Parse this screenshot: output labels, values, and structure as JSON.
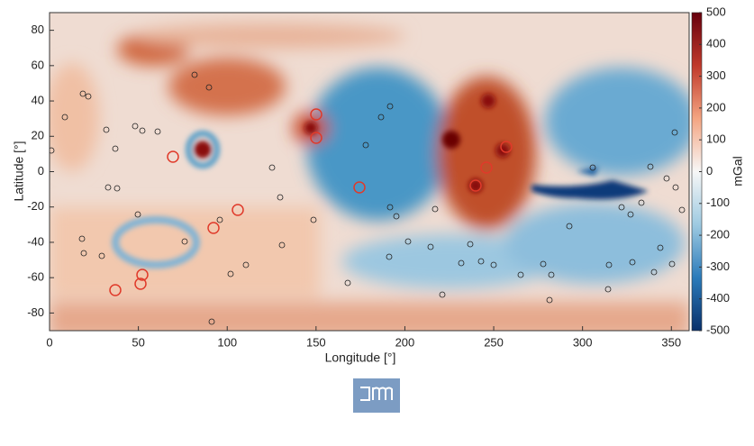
{
  "chart_data": {
    "type": "heatmap",
    "x_label": "Longitude [°]",
    "y_label": "Latitude [°]",
    "xlim": [
      0,
      360
    ],
    "ylim": [
      -90,
      90
    ],
    "xticks": [
      0,
      50,
      100,
      150,
      200,
      250,
      300,
      350
    ],
    "yticks": [
      -80,
      -60,
      -40,
      -20,
      0,
      20,
      40,
      60,
      80
    ],
    "colorbar": {
      "label": "mGal",
      "lim": [
        -500,
        500
      ],
      "ticks": [
        -500,
        -400,
        -300,
        -200,
        -100,
        0,
        100,
        200,
        300,
        400,
        500
      ],
      "colors": [
        "#08306b",
        "#2b7bba",
        "#9ecae1",
        "#f7f7f7",
        "#f4a582",
        "#c0392b",
        "#67000d"
      ]
    }
  }
}
